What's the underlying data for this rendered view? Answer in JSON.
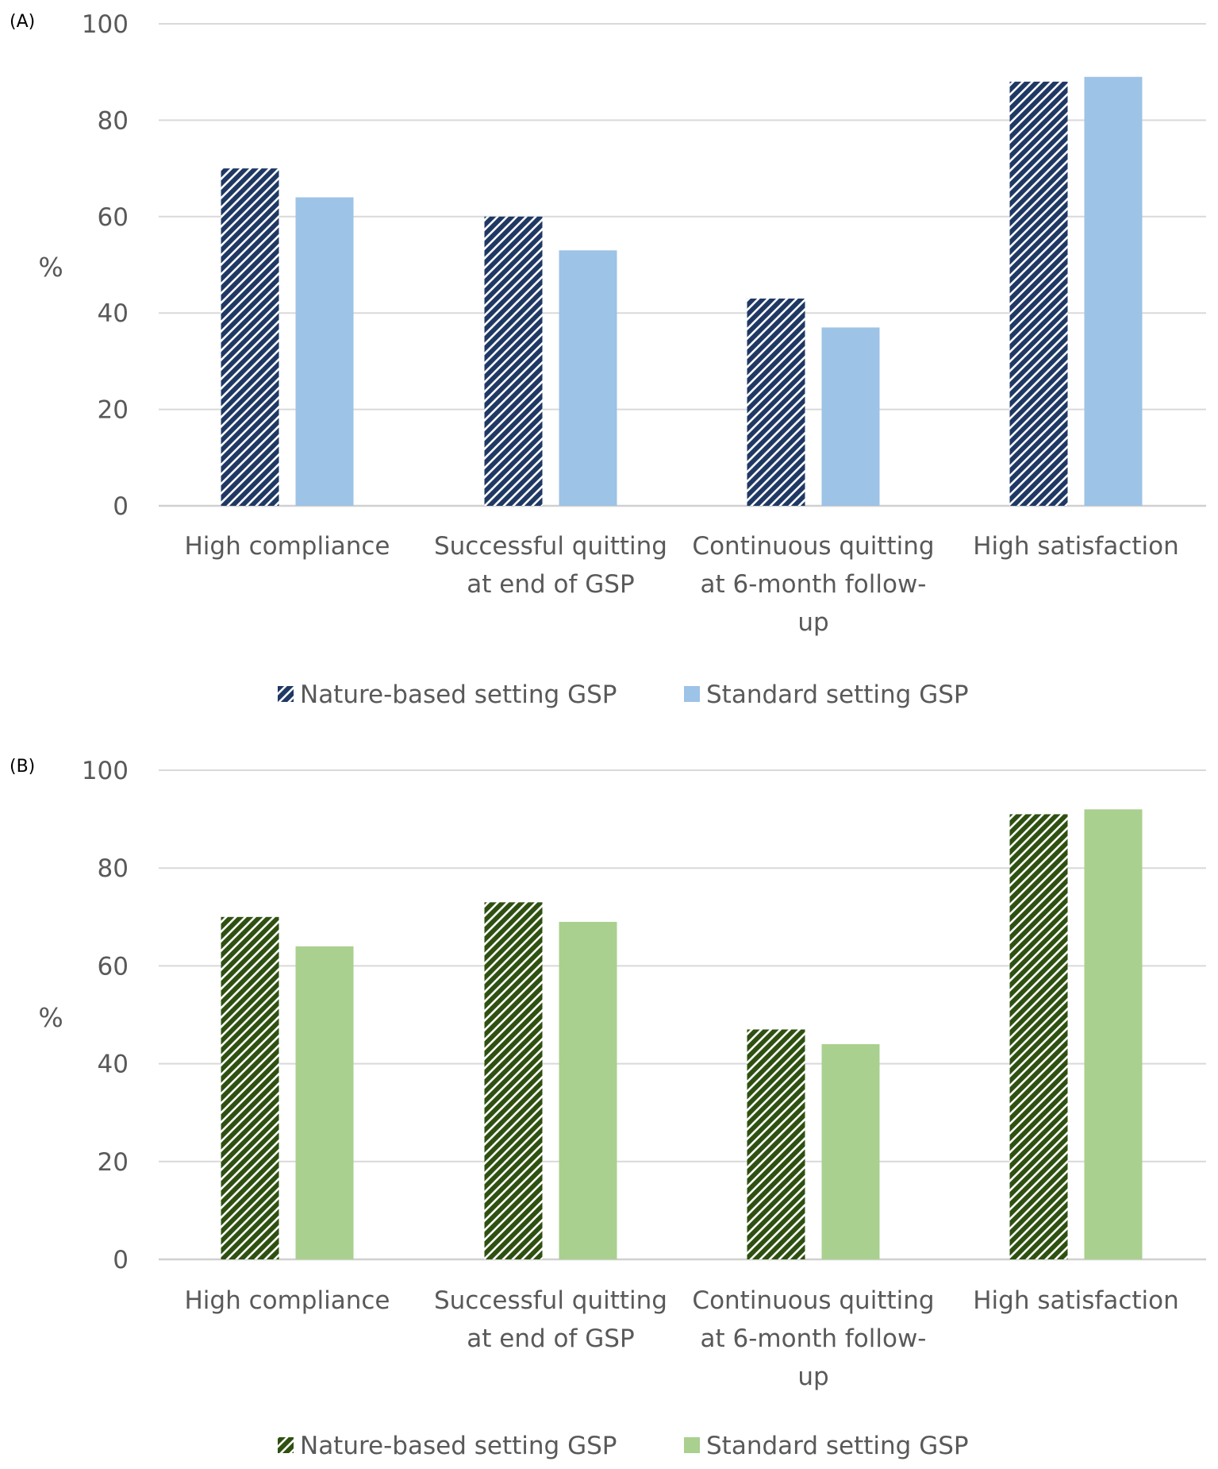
{
  "chart_data": [
    {
      "type": "bar",
      "panel_label": "(A)",
      "ylabel": "%",
      "ylim": [
        0,
        100
      ],
      "yticks": [
        0,
        20,
        40,
        60,
        80,
        100
      ],
      "grid": true,
      "categories": [
        [
          "High compliance"
        ],
        [
          "Successful quitting",
          "at end of GSP"
        ],
        [
          "Continuous quitting",
          "at 6-month follow-",
          "up"
        ],
        [
          "High satisfaction"
        ]
      ],
      "series": [
        {
          "name": "Nature-based setting GSP",
          "values": [
            70,
            60,
            43,
            88
          ],
          "color": "#1f3864",
          "pattern": "hatched"
        },
        {
          "name": "Standard setting GSP",
          "values": [
            64,
            53,
            37,
            89
          ],
          "color": "#9dc3e6",
          "pattern": "solid"
        }
      ],
      "legend": "bottom"
    },
    {
      "type": "bar",
      "panel_label": "(B)",
      "ylabel": "%",
      "ylim": [
        0,
        100
      ],
      "yticks": [
        0,
        20,
        40,
        60,
        80,
        100
      ],
      "grid": true,
      "categories": [
        [
          "High compliance"
        ],
        [
          "Successful quitting",
          "at end of GSP"
        ],
        [
          "Continuous quitting",
          "at 6-month follow-",
          "up"
        ],
        [
          "High satisfaction"
        ]
      ],
      "series": [
        {
          "name": "Nature-based setting GSP",
          "values": [
            70,
            73,
            47,
            91
          ],
          "color": "#2e5010",
          "pattern": "hatched"
        },
        {
          "name": "Standard setting GSP",
          "values": [
            64,
            69,
            44,
            92
          ],
          "color": "#a9d08e",
          "pattern": "solid"
        }
      ],
      "legend": "bottom"
    }
  ]
}
